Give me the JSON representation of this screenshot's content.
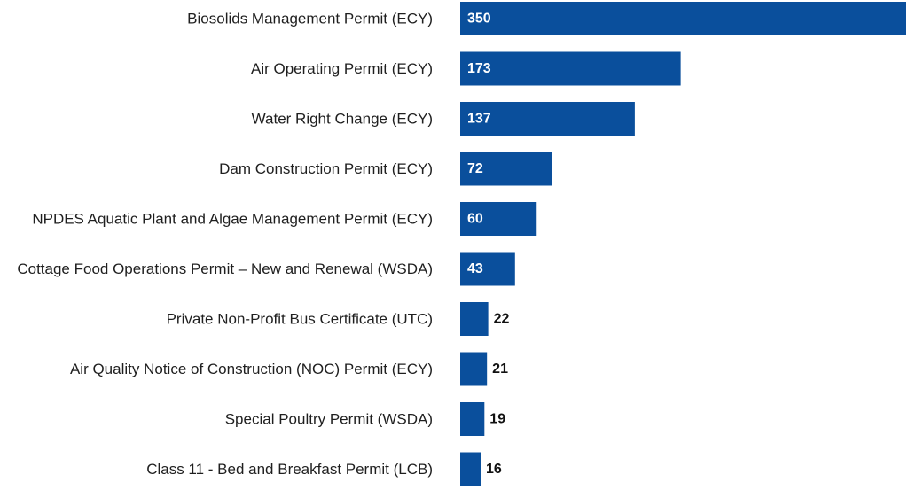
{
  "chart_data": {
    "type": "bar",
    "orientation": "horizontal",
    "categories": [
      "Biosolids Management Permit (ECY)",
      "Air Operating Permit (ECY)",
      "Water Right Change (ECY)",
      "Dam Construction Permit (ECY)",
      "NPDES Aquatic Plant and Algae Management Permit (ECY)",
      "Cottage Food Operations Permit – New and Renewal (WSDA)",
      "Private Non-Profit Bus Certificate (UTC)",
      "Air Quality Notice of Construction (NOC) Permit (ECY)",
      "Special Poultry Permit (WSDA)",
      "Class 11 - Bed and Breakfast Permit (LCB)"
    ],
    "values": [
      350,
      173,
      137,
      72,
      60,
      43,
      22,
      21,
      19,
      16
    ],
    "value_labels": [
      "350",
      "173",
      "137",
      "72",
      "60",
      "43",
      "22",
      "21",
      "19",
      "16"
    ],
    "xlim": [
      0,
      350
    ],
    "grid": false,
    "legend": "none",
    "bar_color": "#0a4f9c",
    "label_inside_color": "#ffffff",
    "label_outside_color": "#111111"
  }
}
